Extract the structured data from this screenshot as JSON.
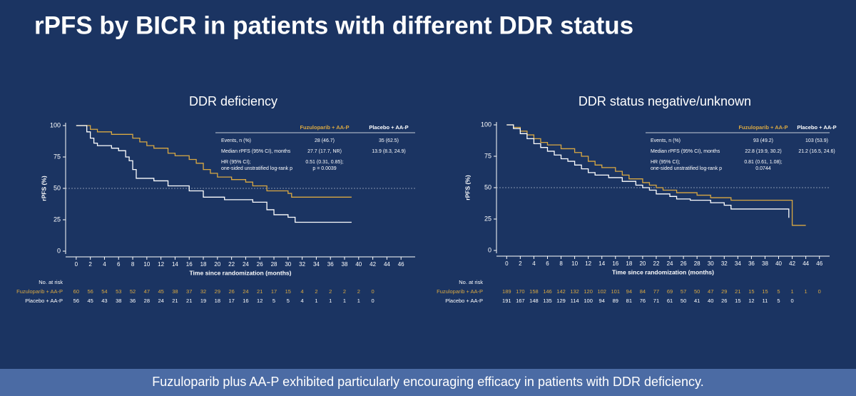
{
  "title": "rPFS by BICR in patients with different DDR status",
  "footer": "Fuzuloparib plus AA-P exhibited particularly encouraging efficacy in patients with DDR deficiency.",
  "chart_data": [
    {
      "type": "line",
      "step": true,
      "title": "DDR deficiency",
      "xlabel": "Time since randomization (months)",
      "ylabel": "rPFS (%)",
      "xlim": [
        -1.5,
        48
      ],
      "ylim": [
        0,
        100
      ],
      "xticks": [
        0,
        2,
        4,
        6,
        8,
        10,
        12,
        14,
        16,
        18,
        20,
        22,
        24,
        26,
        28,
        30,
        32,
        34,
        36,
        38,
        40,
        42,
        44,
        46
      ],
      "yticks": [
        0,
        25,
        50,
        75,
        100
      ],
      "reference_line": 50,
      "series": [
        {
          "name": "Fuzuloparib + AA-P",
          "color": "#d9a842",
          "x": [
            0,
            2,
            3,
            5,
            8,
            9,
            10,
            11,
            13,
            14,
            16,
            17,
            18,
            19,
            20,
            22,
            24,
            25,
            27,
            30,
            30.5,
            39
          ],
          "values": [
            100,
            97,
            95,
            93,
            90,
            87,
            84,
            82,
            78,
            76,
            73,
            70,
            65,
            62,
            59,
            57,
            55,
            52,
            48,
            46,
            43,
            43
          ]
        },
        {
          "name": "Placebo + AA-P",
          "color": "#ffffff",
          "x": [
            0,
            1.5,
            2,
            2.5,
            3,
            5,
            6,
            7,
            7.5,
            8,
            8.5,
            11,
            13,
            16,
            18,
            21,
            25,
            27,
            28,
            30,
            31,
            39
          ],
          "values": [
            100,
            95,
            90,
            86,
            84,
            82,
            80,
            75,
            72,
            65,
            58,
            56,
            52,
            48,
            43,
            41,
            39,
            33,
            29,
            27,
            23,
            23
          ]
        }
      ],
      "stats": {
        "rows": [
          {
            "label": [
              "Events, n (%)"
            ],
            "values": [
              [
                "28 (46.7)"
              ],
              [
                "35 (62.5)"
              ]
            ]
          },
          {
            "label": [
              "Median rPFS (95% CI), months"
            ],
            "values": [
              [
                "27.7 (17.7, NR)"
              ],
              [
                "13.9 (8.3, 24.9)"
              ]
            ]
          },
          {
            "label": [
              "HR (95% CI);",
              "one-sided unstratified log-rank p"
            ],
            "values": [
              [
                "0.51 (0.31, 0.85);",
                "p = 0.0039"
              ],
              []
            ]
          }
        ]
      },
      "at_risk": {
        "label": "No. at risk",
        "rows": [
          [
            60,
            56,
            54,
            53,
            52,
            47,
            45,
            38,
            37,
            32,
            29,
            26,
            24,
            21,
            17,
            15,
            4,
            2,
            2,
            2,
            2,
            0
          ],
          [
            56,
            45,
            43,
            38,
            36,
            28,
            24,
            21,
            21,
            19,
            18,
            17,
            16,
            12,
            5,
            5,
            4,
            1,
            1,
            1,
            1,
            0
          ]
        ]
      }
    },
    {
      "type": "line",
      "step": true,
      "title": "DDR status negative/unknown",
      "xlabel": "Time since randomization (months)",
      "ylabel": "rPFS (%)",
      "xlim": [
        -1.5,
        47.5
      ],
      "ylim": [
        0,
        100
      ],
      "xticks": [
        0,
        2,
        4,
        6,
        8,
        10,
        12,
        14,
        16,
        18,
        20,
        22,
        24,
        26,
        28,
        30,
        32,
        34,
        36,
        38,
        40,
        42,
        44,
        46
      ],
      "yticks": [
        0,
        25,
        50,
        75,
        100
      ],
      "reference_line": 50,
      "series": [
        {
          "name": "Fuzuloparib + AA-P",
          "color": "#d9a842",
          "x": [
            0,
            1,
            2,
            3,
            4,
            5,
            6,
            8,
            10,
            11,
            12,
            13,
            14,
            16,
            17,
            18,
            20,
            21,
            22,
            23,
            25,
            28,
            30,
            33,
            41,
            42,
            44
          ],
          "values": [
            100,
            98,
            95,
            92,
            89,
            86,
            84,
            81,
            78,
            75,
            71,
            68,
            66,
            63,
            60,
            57,
            54,
            52,
            50,
            48,
            46,
            44,
            42,
            40,
            40,
            20,
            20
          ]
        },
        {
          "name": "Placebo + AA-P",
          "color": "#ffffff",
          "x": [
            0,
            1,
            2,
            3,
            4,
            5,
            6,
            7,
            8,
            9,
            10,
            11,
            12,
            13,
            15,
            17,
            19,
            20,
            21,
            22,
            24,
            25,
            27,
            30,
            32,
            33,
            41,
            41.5
          ],
          "values": [
            100,
            97,
            93,
            89,
            85,
            82,
            79,
            76,
            73,
            71,
            68,
            65,
            62,
            60,
            58,
            55,
            52,
            50,
            48,
            45,
            43,
            41,
            40,
            38,
            36,
            33,
            33,
            26
          ]
        }
      ],
      "stats": {
        "rows": [
          {
            "label": [
              "Events, n (%)"
            ],
            "values": [
              [
                "93 (49.2)"
              ],
              [
                "103 (53.9)"
              ]
            ]
          },
          {
            "label": [
              "Median rPFS (95% CI), months"
            ],
            "values": [
              [
                "22.8 (19.9, 30.2)"
              ],
              [
                "21.2 (16.5, 24.6)"
              ]
            ]
          },
          {
            "label": [
              "HR (95% CI);",
              "one-sided unstratified log-rank p"
            ],
            "values": [
              [
                "0.81 (0.61, 1.08);",
                "0.0744"
              ],
              []
            ]
          }
        ]
      },
      "at_risk": {
        "label": "No. at risk",
        "rows": [
          [
            189,
            170,
            158,
            146,
            142,
            132,
            120,
            102,
            101,
            94,
            84,
            77,
            69,
            57,
            50,
            47,
            29,
            21,
            15,
            15,
            5,
            1,
            1,
            0
          ],
          [
            191,
            167,
            148,
            135,
            129,
            114,
            100,
            94,
            89,
            81,
            76,
            71,
            61,
            50,
            41,
            40,
            26,
            15,
            12,
            11,
            5,
            0
          ]
        ]
      }
    }
  ]
}
